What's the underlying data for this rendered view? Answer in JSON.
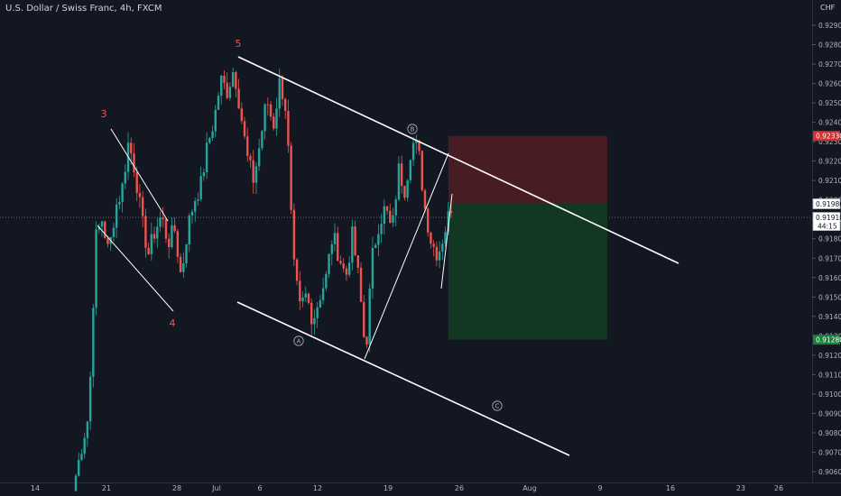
{
  "header": {
    "symbol_title": "U.S. Dollar / Swiss Franc, 4h, FXCM",
    "currency": "CHF"
  },
  "colors": {
    "background": "#131722",
    "up": "#26a69a",
    "down": "#ef5350",
    "text": "#b2b5be",
    "wave_label": "#ef5350",
    "line": "#ffffff",
    "stop_zone": "#4a1c23",
    "target_zone": "#123a25"
  },
  "chart_data": {
    "type": "candlestick",
    "title": "U.S. Dollar / Swiss Franc, 4h, FXCM",
    "ylim": [
      0.9055,
      0.9312
    ],
    "y_ticks": [
      "0.92900",
      "0.92800",
      "0.92700",
      "0.92600",
      "0.92500",
      "0.92400",
      "0.92300",
      "0.92200",
      "0.92100",
      "0.92000",
      "0.91900",
      "0.91800",
      "0.91700",
      "0.91600",
      "0.91500",
      "0.91400",
      "0.91300",
      "0.91200",
      "0.91100",
      "0.91000",
      "0.90900",
      "0.90800",
      "0.90700",
      "0.90600"
    ],
    "x_ticks": [
      "14",
      "21",
      "28",
      "Jul",
      "6",
      "12",
      "19",
      "26",
      "Aug",
      "9",
      "16",
      "23",
      "26"
    ],
    "price_labels": {
      "stop": {
        "value": "0.92330",
        "color": "#d32f2f"
      },
      "entry": {
        "value": "0.91980",
        "color": "#ffffff"
      },
      "current": {
        "value": "0.91910",
        "countdown": "44:15",
        "color": "#ffffff"
      },
      "target": {
        "value": "0.91280",
        "color": "#1b7f3a"
      }
    },
    "current_price": 0.9191,
    "wave_labels": [
      "3",
      "4",
      "5"
    ],
    "circled_labels": [
      "A",
      "B",
      "C"
    ],
    "series_anchor_prices": [
      0.9058,
      0.9075,
      0.909,
      0.918,
      0.919,
      0.9172,
      0.9196,
      0.9205,
      0.923,
      0.9215,
      0.919,
      0.9172,
      0.9184,
      0.9192,
      0.9178,
      0.9185,
      0.916,
      0.9186,
      0.92,
      0.9208,
      0.9228,
      0.9241,
      0.9262,
      0.9256,
      0.9268,
      0.9246,
      0.9222,
      0.921,
      0.923,
      0.9252,
      0.9238,
      0.9262,
      0.9245,
      0.9168,
      0.9144,
      0.9151,
      0.9138,
      0.915,
      0.916,
      0.9182,
      0.9171,
      0.916,
      0.9182,
      0.9158,
      0.912,
      0.917,
      0.9188,
      0.9196,
      0.9183,
      0.9216,
      0.9205,
      0.923,
      0.9226,
      0.9196,
      0.9178,
      0.9172,
      0.9184,
      0.9197
    ]
  }
}
